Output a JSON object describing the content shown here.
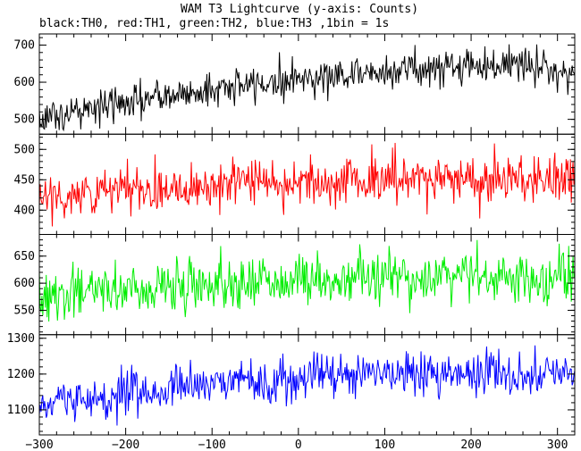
{
  "title": "WAM T3 Lightcurve (y-axis: Counts)",
  "subtitle": "black:TH0, red:TH1, green:TH2, blue:TH3 ,1bin = 1s",
  "chart_data": {
    "type": "line",
    "title": "WAM T3 Lightcurve (y-axis: Counts)",
    "subtitle": "black:TH0, red:TH1, green:TH2, blue:TH3 ,1bin = 1s",
    "xlabel": "",
    "ylabel": "Counts",
    "xlim": [
      -300,
      320
    ],
    "x_ticks": [
      -300,
      -200,
      -100,
      0,
      100,
      200,
      300
    ],
    "x_tick_labels": [
      "−300",
      "−200",
      "−100",
      "0",
      "100",
      "200",
      "300"
    ],
    "bin_seconds": 1,
    "grid": false,
    "panels": [
      {
        "series": "TH0",
        "color": "#000000",
        "ylim": [
          460,
          730
        ],
        "y_ticks": [
          500,
          600,
          700
        ],
        "trend": [
          [
            -300,
            505
          ],
          [
            -200,
            545
          ],
          [
            -100,
            580
          ],
          [
            0,
            610
          ],
          [
            100,
            630
          ],
          [
            200,
            645
          ],
          [
            250,
            650
          ],
          [
            320,
            625
          ]
        ],
        "noise_sd": 24,
        "approx_min": 470,
        "approx_max": 728
      },
      {
        "series": "TH1",
        "color": "#ff0000",
        "ylim": [
          360,
          525
        ],
        "y_ticks": [
          400,
          450,
          500
        ],
        "trend": [
          [
            -300,
            420
          ],
          [
            -200,
            432
          ],
          [
            -100,
            443
          ],
          [
            0,
            447
          ],
          [
            100,
            450
          ],
          [
            200,
            452
          ],
          [
            320,
            452
          ]
        ],
        "noise_sd": 20,
        "approx_min": 370,
        "approx_max": 522
      },
      {
        "series": "TH2",
        "color": "#00ee00",
        "ylim": [
          505,
          690
        ],
        "y_ticks": [
          550,
          600,
          650
        ],
        "trend": [
          [
            -300,
            572
          ],
          [
            -200,
            590
          ],
          [
            -100,
            600
          ],
          [
            0,
            605
          ],
          [
            100,
            612
          ],
          [
            200,
            612
          ],
          [
            320,
            610
          ]
        ],
        "noise_sd": 24,
        "approx_min": 512,
        "approx_max": 687
      },
      {
        "series": "TH3",
        "color": "#0000ff",
        "ylim": [
          1030,
          1310
        ],
        "y_ticks": [
          1100,
          1200,
          1300
        ],
        "trend": [
          [
            -300,
            1110
          ],
          [
            -200,
            1140
          ],
          [
            -100,
            1170
          ],
          [
            0,
            1195
          ],
          [
            100,
            1200
          ],
          [
            200,
            1205
          ],
          [
            320,
            1200
          ]
        ],
        "noise_sd": 30,
        "approx_min": 1035,
        "approx_max": 1305
      }
    ]
  }
}
